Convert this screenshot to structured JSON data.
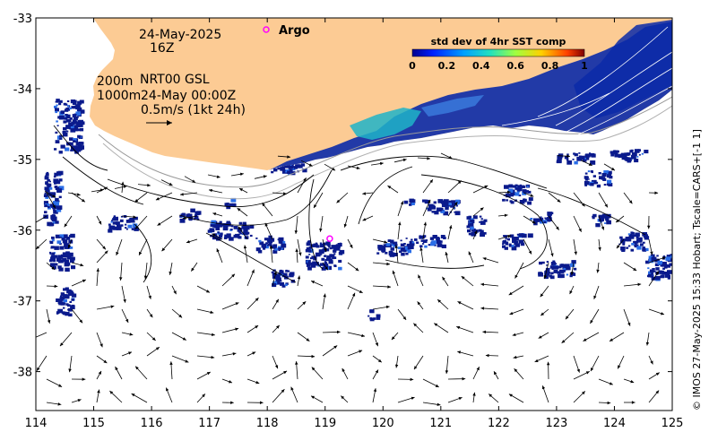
{
  "header": {
    "date": "24-May-2025",
    "hour": "16Z",
    "depth_line1_depth": "200m",
    "depth_line1_text": "NRT00 GSL",
    "depth_line2_depth": "1000m",
    "depth_line2_text": "24-May 00:00Z",
    "scale_text": "0.5m/s (1kt 24h)"
  },
  "argo_label": "Argo",
  "colorbar": {
    "title": "std dev of 4hr SST comp",
    "ticks": [
      "0",
      "0.2",
      "0.4",
      "0.6",
      "0.8",
      "1"
    ],
    "range": [
      0,
      1
    ]
  },
  "credit": "© IMOS 27-May-2025 15:33 Hobart; Tscale=CARS+[-1 1]",
  "axes": {
    "lon_ticks": [
      "114",
      "115",
      "116",
      "117",
      "118",
      "119",
      "120",
      "121",
      "122",
      "123",
      "124",
      "125"
    ],
    "lat_ticks": [
      "-33",
      "-34",
      "-35",
      "-36",
      "-37",
      "-38"
    ],
    "lon_range": [
      114,
      125
    ],
    "lat_range": [
      -38.55,
      -33
    ]
  },
  "argo_float": {
    "lon": 119.08,
    "lat": -36.12
  },
  "colors": {
    "land": "#fccb94",
    "ocean": "#ffffff",
    "sst_low": "#0a1a8c",
    "argo": "#ff00ff"
  }
}
